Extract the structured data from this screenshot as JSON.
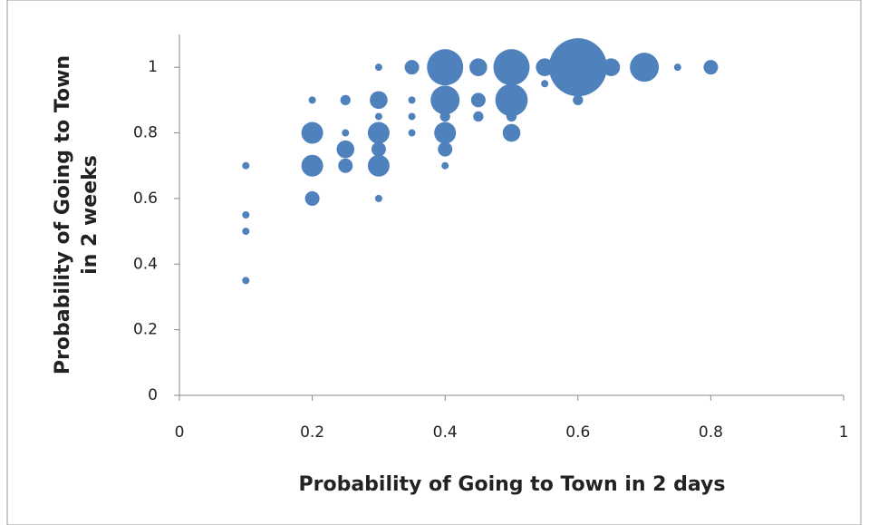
{
  "chart_data": {
    "type": "bubble",
    "x_label": "Probability of Going to Town in 2 days",
    "y_label": [
      "Probability of Going to Town",
      "in 2 weeks"
    ],
    "xlim": [
      0,
      1
    ],
    "xticks": [
      0,
      0.2,
      0.4,
      0.6,
      0.8,
      1
    ],
    "ylim": [
      0,
      1.1
    ],
    "yticks": [
      0,
      0.2,
      0.4,
      0.6,
      0.8,
      1
    ],
    "color": "#4f81bd",
    "x": [
      0.1,
      0.1,
      0.1,
      0.1,
      0.2,
      0.2,
      0.2,
      0.2,
      0.25,
      0.25,
      0.25,
      0.25,
      0.3,
      0.3,
      0.3,
      0.3,
      0.3,
      0.3,
      0.3,
      0.35,
      0.35,
      0.35,
      0.35,
      0.4,
      0.4,
      0.4,
      0.4,
      0.4,
      0.4,
      0.45,
      0.45,
      0.45,
      0.5,
      0.5,
      0.5,
      0.5,
      0.55,
      0.55,
      0.6,
      0.6,
      0.65,
      0.7,
      0.75,
      0.8
    ],
    "y": [
      0.7,
      0.55,
      0.5,
      0.35,
      0.9,
      0.8,
      0.7,
      0.6,
      0.9,
      0.8,
      0.75,
      0.7,
      1,
      0.9,
      0.85,
      0.8,
      0.75,
      0.7,
      0.6,
      1,
      0.9,
      0.85,
      0.8,
      1,
      0.9,
      0.85,
      0.8,
      0.75,
      0.7,
      1,
      0.9,
      0.85,
      1,
      0.9,
      0.85,
      0.8,
      1,
      0.95,
      1,
      0.9,
      1,
      1,
      1,
      1
    ],
    "sizes": [
      1,
      1,
      1,
      1,
      1,
      9,
      9,
      4,
      2,
      1,
      6,
      4,
      1,
      6,
      1,
      9,
      4,
      9,
      1,
      4,
      1,
      1,
      1,
      25,
      16,
      2,
      9,
      4,
      1,
      6,
      4,
      2,
      25,
      20,
      2,
      6,
      6,
      1,
      64,
      2,
      6,
      16,
      1,
      4
    ]
  }
}
